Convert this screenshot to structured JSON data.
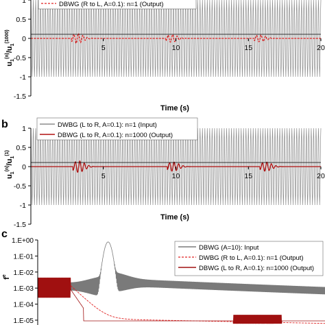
{
  "chart_data": [
    {
      "panel_label": "",
      "type": "line",
      "title": "",
      "xlabel": "Time (s)",
      "ylabel_main": "u",
      "ylabel_sub_num": "1",
      "ylabel_sup_num": "(n)",
      "ylabel_sub_den": "1",
      "ylabel_sup_den": "(1000)",
      "xlim": [
        0,
        20
      ],
      "ylim": [
        -1.5,
        1
      ],
      "xticks": [
        0,
        5,
        10,
        15,
        20
      ],
      "xtick_labels": [
        "0",
        "5",
        "10",
        "15",
        "20"
      ],
      "yticks": [
        1,
        0.5,
        0,
        -0.5,
        -1,
        -1.5
      ],
      "ytick_labels": [
        "1",
        "0.5",
        "0",
        "-0.5",
        "-1",
        "-1.5"
      ],
      "grid": false,
      "legend_position": "top-left",
      "series": [
        {
          "name": "",
          "color": "#8c8c8c",
          "style": "solid",
          "kind": "carrier",
          "amplitude": 1.0,
          "periods": 120
        },
        {
          "name": "DBWG (R to L, A=0.1): n=1 (Output)",
          "color": "#e02020",
          "style": "dashed",
          "kind": "response",
          "bursts": [
            {
              "t": 3.2,
              "amp": 0.13
            },
            {
              "t": 9.7,
              "amp": 0.1
            },
            {
              "t": 15.8,
              "amp": 0.09
            }
          ]
        }
      ]
    },
    {
      "panel_label": "b",
      "type": "line",
      "title": "",
      "xlabel": "Time (s)",
      "ylabel_main": "u",
      "ylabel_sub_num": "1",
      "ylabel_sup_num": "(n)",
      "ylabel_sub_den": "1",
      "ylabel_sup_den": "(1)",
      "xlim": [
        0,
        20
      ],
      "ylim": [
        -1.5,
        1
      ],
      "xticks": [
        0,
        5,
        10,
        15,
        20
      ],
      "xtick_labels": [
        "0",
        "5",
        "10",
        "15",
        "20"
      ],
      "yticks": [
        1,
        0.5,
        0,
        -0.5,
        -1,
        -1.5
      ],
      "ytick_labels": [
        "1",
        "0.5",
        "0",
        "-0.5",
        "-1",
        "-1.5"
      ],
      "grid": false,
      "legend_position": "top-left",
      "series": [
        {
          "name": "DWBG (L to R, A=0.1): n=1 (Input)",
          "color": "#8c8c8c",
          "style": "solid",
          "kind": "carrier",
          "amplitude": 1.0,
          "periods": 120
        },
        {
          "name": "DBWG (L to R, A=0.1): n=1000 (Output)",
          "color": "#b01010",
          "style": "solid",
          "kind": "response",
          "bursts": [
            {
              "t": 3.3,
              "amp": 0.15
            },
            {
              "t": 9.8,
              "amp": 0.12
            },
            {
              "t": 16.2,
              "amp": 0.12
            }
          ]
        }
      ]
    },
    {
      "panel_label": "c",
      "type": "line",
      "title": "",
      "xlabel": "",
      "ylabel_main": "f",
      "ylabel_sup": "e",
      "yscale": "log",
      "ylim": [
        5e-06,
        1
      ],
      "yticks": [
        1,
        0.1,
        0.01,
        0.001,
        0.0001,
        1e-05
      ],
      "ytick_labels": [
        "1.E+00",
        "1.E-01",
        "1.E-02",
        "1.E-03",
        "1.E-04",
        "1.E-05"
      ],
      "grid": false,
      "legend_position": "top-right",
      "series": [
        {
          "name": "DBWG (A=10): Input",
          "color": "#7a7a7a",
          "style": "solid"
        },
        {
          "name": "DWBG (R to L, A=0.1): n=1 (Output)",
          "color": "#e02020",
          "style": "dashed"
        },
        {
          "name": "DBWG (L to R, A=0.1): n=1000 (Output)",
          "color": "#a01010",
          "style": "solid"
        }
      ]
    }
  ]
}
